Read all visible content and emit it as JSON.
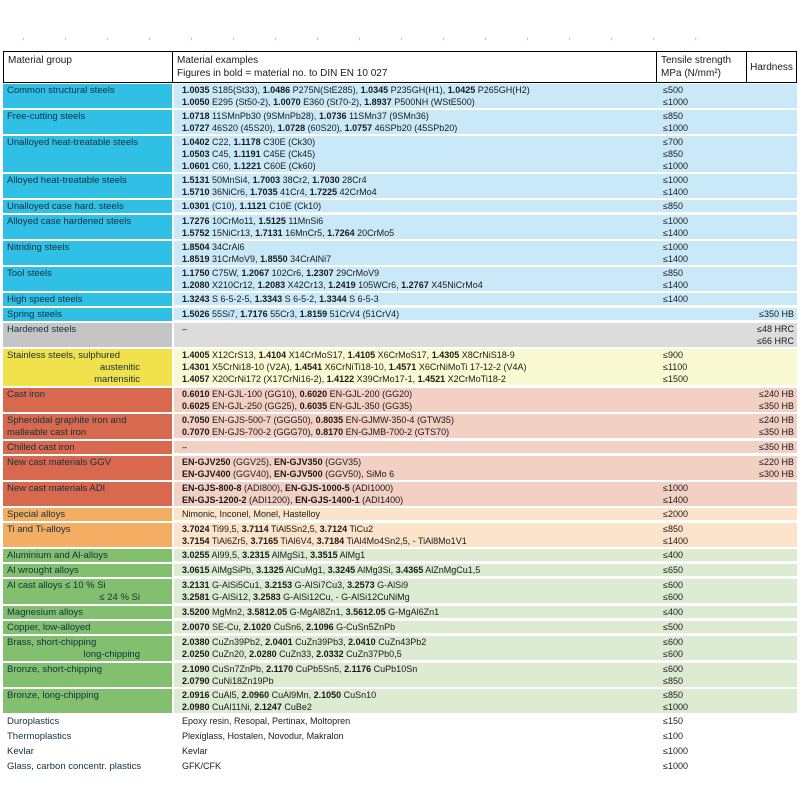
{
  "clipped_top_row": {
    "token": "-,---",
    "count": 17
  },
  "themes": {
    "cyan": {
      "label_bg": "#30bfe5",
      "row_bg": "#c9e9f8"
    },
    "gray": {
      "label_bg": "#c5c5c5",
      "row_bg": "#dcdcdc"
    },
    "yellow": {
      "label_bg": "#f1e14d",
      "row_bg": "#fafad2"
    },
    "salmon": {
      "label_bg": "#d8694f",
      "row_bg": "#f2d0c3"
    },
    "orange": {
      "label_bg": "#f3ae63",
      "row_bg": "#fbe4c9"
    },
    "green": {
      "label_bg": "#82bf6e",
      "row_bg": "#dcebd1"
    },
    "white": {
      "label_bg": "#ffffff",
      "row_bg": "#ffffff"
    }
  },
  "table": {
    "header": {
      "col1": "Material group",
      "col2_line1": "Material examples",
      "col2_line2": "Figures in bold = material no. to DIN EN 10 027",
      "col3_line1": "Tensile strength",
      "col3_line2": "MPa (N/mm²)",
      "col4": "Hardness"
    },
    "groups": [
      {
        "theme": "cyan",
        "label_lines": [
          {
            "text": "Common structural steels",
            "align": "left"
          }
        ],
        "rows": [
          {
            "example": "**1.0035** S185(St33), **1.0486** P275N(StE285), **1.0345** P235GH(H1), **1.0425** P265GH(H2)",
            "tensile": "≤500",
            "hardness": ""
          },
          {
            "example": "**1.0050** E295 (St50-2), **1.0070** E360 (St70-2), **1.8937** P500NH (WStE500)",
            "tensile": "≤1000",
            "hardness": ""
          }
        ]
      },
      {
        "theme": "cyan",
        "label_lines": [
          {
            "text": "Free-cutting steels",
            "align": "left"
          }
        ],
        "rows": [
          {
            "example": "**1.0718** 11SMnPb30 (9SMnPb28), **1.0736** 11SMn37 (9SMn36)",
            "tensile": "≤850",
            "hardness": ""
          },
          {
            "example": "**1.0727** 46S20 (45S20), **1.0728** (60S20), **1.0757** 46SPb20 (45SPb20)",
            "tensile": "≤1000",
            "hardness": ""
          }
        ]
      },
      {
        "theme": "cyan",
        "label_lines": [
          {
            "text": "Unalloyed heat-treatable steels",
            "align": "left"
          }
        ],
        "rows": [
          {
            "example": "**1.0402** C22, **1.1178** C30E (Ck30)",
            "tensile": "≤700",
            "hardness": ""
          },
          {
            "example": "**1.0503** C45, **1.1191** C45E (Ck45)",
            "tensile": "≤850",
            "hardness": ""
          },
          {
            "example": "**1.0601** C60, **1.1221** C60E (Ck60)",
            "tensile": "≤1000",
            "hardness": ""
          }
        ]
      },
      {
        "theme": "cyan",
        "label_lines": [
          {
            "text": "Alloyed heat-treatable steels",
            "align": "left"
          }
        ],
        "rows": [
          {
            "example": "**1.5131** 50MnSi4, **1.7003** 38Cr2, **1.7030** 28Cr4",
            "tensile": "≤1000",
            "hardness": ""
          },
          {
            "example": "**1.5710** 36NiCr6, **1.7035** 41Cr4, **1.7225** 42CrMo4",
            "tensile": "≤1400",
            "hardness": ""
          }
        ]
      },
      {
        "theme": "cyan",
        "label_lines": [
          {
            "text": "Unalloyed case hard. steels",
            "align": "left"
          }
        ],
        "rows": [
          {
            "example": "**1.0301** (C10), **1.1121** C10E (Ck10)",
            "tensile": "≤850",
            "hardness": ""
          }
        ]
      },
      {
        "theme": "cyan",
        "label_lines": [
          {
            "text": "Alloyed case hardened steels",
            "align": "left"
          }
        ],
        "rows": [
          {
            "example": "**1.7276** 10CrMo11, **1.5125** 11MnSi6",
            "tensile": "≤1000",
            "hardness": ""
          },
          {
            "example": "**1.5752** 15NiCr13, **1.7131** 16MnCr5, **1.7264** 20CrMo5",
            "tensile": "≤1400",
            "hardness": ""
          }
        ]
      },
      {
        "theme": "cyan",
        "label_lines": [
          {
            "text": "Nitriding steels",
            "align": "left"
          }
        ],
        "rows": [
          {
            "example": "**1.8504** 34CrAl6",
            "tensile": "≤1000",
            "hardness": ""
          },
          {
            "example": "**1.8519** 31CrMoV9, **1.8550** 34CrAlNi7",
            "tensile": "≤1400",
            "hardness": ""
          }
        ]
      },
      {
        "theme": "cyan",
        "label_lines": [
          {
            "text": "Tool steels",
            "align": "left"
          }
        ],
        "rows": [
          {
            "example": "**1.1750** C75W, **1.2067** 102Cr6, **1.2307** 29CrMoV9",
            "tensile": "≤850",
            "hardness": ""
          },
          {
            "example": "**1.2080** X210Cr12, **1.2083** X42Cr13, **1.2419** 105WCr6, **1.2767** X45NiCrMo4",
            "tensile": "≤1400",
            "hardness": ""
          }
        ]
      },
      {
        "theme": "cyan",
        "label_lines": [
          {
            "text": "High speed steels",
            "align": "left"
          }
        ],
        "rows": [
          {
            "example": "**1.3243** S 6-5-2-5, **1.3343** S 6-5-2, **1.3344** S 6-5-3",
            "tensile": "≤1400",
            "hardness": ""
          }
        ]
      },
      {
        "theme": "cyan",
        "label_lines": [
          {
            "text": "Spring steels",
            "align": "left"
          }
        ],
        "rows": [
          {
            "example": "**1.5026** 55Si7, **1.7176** 55Cr3, **1.8159** 51CrV4 (51CrV4)",
            "tensile": "",
            "hardness": "≤350 HB"
          }
        ]
      },
      {
        "theme": "gray",
        "label_lines": [
          {
            "text": "Hardened steels",
            "align": "left"
          }
        ],
        "rows": [
          {
            "example": "–",
            "tensile": "",
            "hardness": "≤48 HRC"
          },
          {
            "example": "",
            "tensile": "",
            "hardness": "≤66 HRC"
          }
        ]
      },
      {
        "theme": "yellow",
        "label_lines": [
          {
            "text": "Stainless steels, sulphured",
            "align": "left"
          },
          {
            "text": "austenitic",
            "align": "right"
          },
          {
            "text": "martensitic",
            "align": "right"
          }
        ],
        "rows": [
          {
            "example": "**1.4005** X12CrS13, **1.4104** X14CrMoS17, **1.4105** X6CrMoS17, **1.4305** X8CrNiS18-9",
            "tensile": "≤900",
            "hardness": ""
          },
          {
            "example": "**1.4301** X5CrNi18-10 (V2A), **1.4541** X6CrNiTi18-10, **1.4571** X6CrNiMoTi 17-12-2 (V4A)",
            "tensile": "≤1100",
            "hardness": ""
          },
          {
            "example": "**1.4057** X20CrNi172 (X17CrNi16-2), **1.4122** X39CrMo17-1, **1.4521** X2CrMoTi18-2",
            "tensile": "≤1500",
            "hardness": ""
          }
        ]
      },
      {
        "theme": "salmon",
        "label_lines": [
          {
            "text": "Cast iron",
            "align": "left"
          }
        ],
        "rows": [
          {
            "example": "**0.6010** EN-GJL-100 (GG10), **0.6020** EN-GJL-200 (GG20)",
            "tensile": "",
            "hardness": "≤240 HB"
          },
          {
            "example": "**0.6025** EN-GJL-250 (GG25), **0.6035** EN-GJL-350 (GG35)",
            "tensile": "",
            "hardness": "≤350 HB"
          }
        ]
      },
      {
        "theme": "salmon",
        "label_lines": [
          {
            "text": "Spheroidal graphite iron and",
            "align": "left"
          },
          {
            "text": "malleable cast iron",
            "align": "left"
          }
        ],
        "rows": [
          {
            "example": "**0.7050** EN-GJS-500-7 (GGG50), **0.8035** EN-GJMW-350-4 (GTW35)",
            "tensile": "",
            "hardness": "≤240 HB"
          },
          {
            "example": "**0.7070** EN-GJS-700-2 (GGG70), **0.8170** EN-GJMB-700-2 (GTS70)",
            "tensile": "",
            "hardness": "≤350 HB"
          }
        ]
      },
      {
        "theme": "salmon",
        "label_lines": [
          {
            "text": "Chilled cast iron",
            "align": "left"
          }
        ],
        "rows": [
          {
            "example": "–",
            "tensile": "",
            "hardness": "≤350 HB"
          }
        ]
      },
      {
        "theme": "salmon",
        "label_lines": [
          {
            "text": "New cast materials GGV",
            "align": "left"
          }
        ],
        "rows": [
          {
            "example": "**EN-GJV250** (GGV25), **EN-GJV350** (GGV35)",
            "tensile": "",
            "hardness": "≤220 HB"
          },
          {
            "example": "**EN-GJV400** (GGV40), **EN-GJV500** (GGV50), SiMo 6",
            "tensile": "",
            "hardness": "≤300 HB"
          }
        ]
      },
      {
        "theme": "salmon",
        "label_lines": [
          {
            "text": "New cast materials ADI",
            "align": "left"
          }
        ],
        "rows": [
          {
            "example": "**EN-GJS-800-8** (ADI800), **EN-GJS-1000-5** (ADI1000)",
            "tensile": "≤1000",
            "hardness": ""
          },
          {
            "example": "**EN-GJS-1200-2** (ADI1200), **EN-GJS-1400-1** (ADI1400)",
            "tensile": "≤1400",
            "hardness": ""
          }
        ]
      },
      {
        "theme": "orange",
        "label_lines": [
          {
            "text": "Special alloys",
            "align": "left"
          }
        ],
        "rows": [
          {
            "example": "Nimonic, Inconel, Monel, Hastelloy",
            "tensile": "≤2000",
            "hardness": ""
          }
        ]
      },
      {
        "theme": "orange",
        "label_lines": [
          {
            "text": "Ti and Ti-alloys",
            "align": "left"
          }
        ],
        "rows": [
          {
            "example": "**3.7024** Ti99,5, **3.7114** TiAl5Sn2,5, **3.7124** TiCu2",
            "tensile": "≤850",
            "hardness": ""
          },
          {
            "example": "**3.7154** TiAl6Zr5, **3.7165** TiAl6V4, **3.7184** TiAl4Mo4Sn2,5, - TiAl8Mo1V1",
            "tensile": "≤1400",
            "hardness": ""
          }
        ]
      },
      {
        "theme": "green",
        "label_lines": [
          {
            "text": "Aluminium and Al-alloys",
            "align": "left"
          }
        ],
        "rows": [
          {
            "example": "**3.0255** Al99,5, **3.2315** AlMgSi1, **3.3515** AlMg1",
            "tensile": "≤400",
            "hardness": ""
          }
        ]
      },
      {
        "theme": "green",
        "label_lines": [
          {
            "text": "Al wrought alloys",
            "align": "left"
          }
        ],
        "rows": [
          {
            "example": "**3.0615** AlMgSiPb, **3.1325** AlCuMg1, **3.3245** AlMg3Si, **3.4365** AlZnMgCu1,5",
            "tensile": "≤650",
            "hardness": ""
          }
        ]
      },
      {
        "theme": "green",
        "label_lines": [
          {
            "text": "Al cast alloys ≤ 10 % Si",
            "align": "left"
          },
          {
            "text": "≤ 24 % Si",
            "align": "right"
          }
        ],
        "rows": [
          {
            "example": "**3.2131** G-AlSi5Cu1, **3.2153** G-AlSi7Cu3, **3.2573** G-AlSi9",
            "tensile": "≤600",
            "hardness": ""
          },
          {
            "example": "**3.2581** G-AlSi12, **3.2583** G-AlSi12Cu, - G-AlSi12CuNiMg",
            "tensile": "≤600",
            "hardness": ""
          }
        ]
      },
      {
        "theme": "green",
        "label_lines": [
          {
            "text": "Magnesium alloys",
            "align": "left"
          }
        ],
        "rows": [
          {
            "example": "**3.5200** MgMn2, **3.5812.05** G-MgAl8Zn1, **3.5612.05** G-MgAl6Zn1",
            "tensile": "≤400",
            "hardness": ""
          }
        ]
      },
      {
        "theme": "green",
        "label_lines": [
          {
            "text": "Copper, low-alloyed",
            "align": "left"
          }
        ],
        "rows": [
          {
            "example": "**2.0070** SE-Cu, **2.1020** CuSn6, **2.1096** G-CuSn5ZnPb",
            "tensile": "≤500",
            "hardness": ""
          }
        ]
      },
      {
        "theme": "green",
        "label_lines": [
          {
            "text": "Brass, short-chipping",
            "align": "left"
          },
          {
            "text": "long-chipping",
            "align": "right"
          }
        ],
        "rows": [
          {
            "example": "**2.0380** CuZn39Pb2, **2.0401** CuZn39Pb3, **2.0410** CuZn43Pb2",
            "tensile": "≤600",
            "hardness": ""
          },
          {
            "example": "**2.0250** CuZn20, **2.0280** CuZn33, **2.0332** CuZn37Pb0,5",
            "tensile": "≤600",
            "hardness": ""
          }
        ]
      },
      {
        "theme": "green",
        "label_lines": [
          {
            "text": "Bronze, short-chipping",
            "align": "left"
          }
        ],
        "rows": [
          {
            "example": "**2.1090** CuSn7ZnPb, **2.1170** CuPb5Sn5, **2.1176** CuPb10Sn",
            "tensile": "≤600",
            "hardness": ""
          },
          {
            "example": "**2.0790** CuNi18Zn19Pb",
            "tensile": "≤850",
            "hardness": ""
          }
        ]
      },
      {
        "theme": "green",
        "label_lines": [
          {
            "text": "Bronze, long-chipping",
            "align": "left"
          }
        ],
        "rows": [
          {
            "example": "**2.0916** CuAl5, **2.0960** CuAl9Mn, **2.1050** CuSn10",
            "tensile": "≤850",
            "hardness": ""
          },
          {
            "example": "**2.0980** CuAl11Ni, **2.1247** CuBe2",
            "tensile": "≤1000",
            "hardness": ""
          }
        ]
      },
      {
        "theme": "white",
        "label_lines": [
          {
            "text": "Duroplastics",
            "align": "left"
          }
        ],
        "rows": [
          {
            "example": "Epoxy resin, Resopal, Pertinax, Moltopren",
            "tensile": "≤150",
            "hardness": ""
          }
        ]
      },
      {
        "theme": "white",
        "label_lines": [
          {
            "text": "Thermoplastics",
            "align": "left"
          }
        ],
        "rows": [
          {
            "example": "Plexiglass, Hostalen, Novodur, Makralon",
            "tensile": "≤100",
            "hardness": ""
          }
        ]
      },
      {
        "theme": "white",
        "label_lines": [
          {
            "text": "Kevlar",
            "align": "left"
          }
        ],
        "rows": [
          {
            "example": "Kevlar",
            "tensile": "≤1000",
            "hardness": ""
          }
        ]
      },
      {
        "theme": "white",
        "label_lines": [
          {
            "text": "Glass, carbon concentr. plastics",
            "align": "left"
          }
        ],
        "rows": [
          {
            "example": "GFK/CFK",
            "tensile": "≤1000",
            "hardness": ""
          }
        ]
      }
    ]
  }
}
